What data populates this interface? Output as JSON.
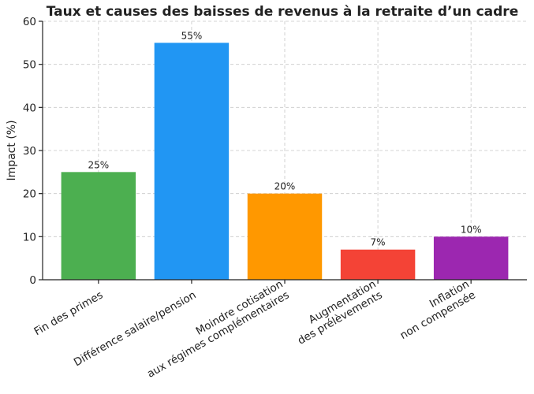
{
  "chart_data": {
    "type": "bar",
    "title": "Taux et causes des baisses de revenus à la retraite d’un cadre",
    "ylabel": "Impact (%)",
    "xlabel": "",
    "ylim": [
      0,
      60
    ],
    "yticks": [
      "0",
      "10",
      "20",
      "30",
      "40",
      "50",
      "60"
    ],
    "grid": true,
    "categories": [
      [
        "Fin des primes"
      ],
      [
        "Différence salaire/pension"
      ],
      [
        "Moindre cotisation",
        "aux régimes complémentaires"
      ],
      [
        "Augmentation",
        "des prélèvements"
      ],
      [
        "Inflation",
        "non compensée"
      ]
    ],
    "values": [
      25,
      55,
      20,
      7,
      10
    ],
    "data_labels": [
      "25%",
      "55%",
      "20%",
      "7%",
      "10%"
    ],
    "colors": [
      "#4caf50",
      "#2196f3",
      "#ff9800",
      "#f44336",
      "#9c27b0"
    ]
  }
}
